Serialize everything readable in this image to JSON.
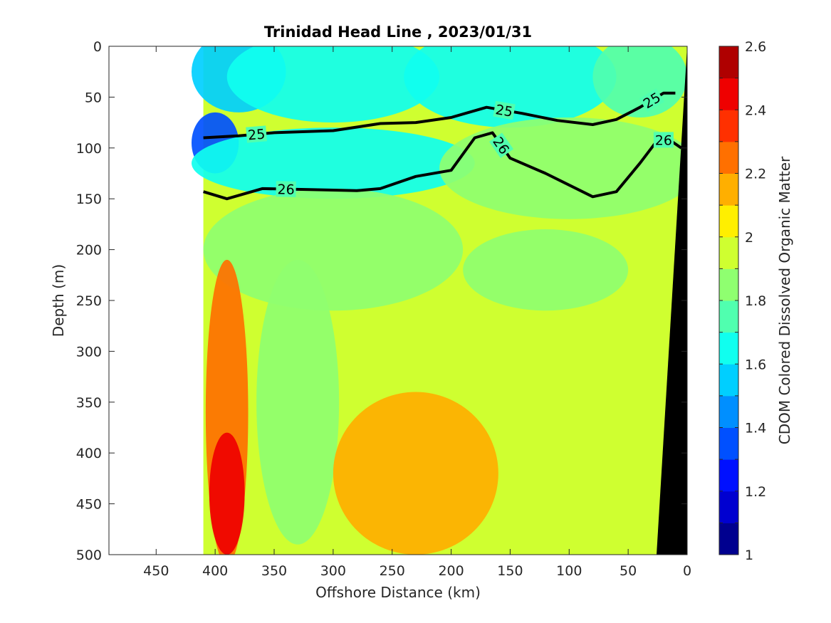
{
  "chart_data": {
    "type": "heatmap",
    "title": "Trinidad Head Line , 2023/01/31",
    "xlabel": "Offshore Distance (km)",
    "ylabel": "Depth (m)",
    "xlim": [
      490,
      0
    ],
    "ylim": [
      0,
      500
    ],
    "x_reversed": true,
    "y_reversed": true,
    "x_ticks": [
      450,
      400,
      350,
      300,
      250,
      200,
      150,
      100,
      50,
      0
    ],
    "y_ticks": [
      0,
      50,
      100,
      150,
      200,
      250,
      300,
      350,
      400,
      450,
      500
    ],
    "data_extent_x": [
      410,
      0
    ],
    "colorbar": {
      "label": "CDOM Colored Dissolved Organic Matter",
      "min": 1,
      "max": 2.6,
      "step": 0.1,
      "ticks": [
        1,
        1.2,
        1.4,
        1.6,
        1.8,
        2,
        2.2,
        2.4,
        2.6
      ],
      "colormap": [
        "#00008f",
        "#0000d0",
        "#0010ff",
        "#0050ff",
        "#008fff",
        "#00cfff",
        "#10ffef",
        "#50ffaf",
        "#8fff70",
        "#cfff30",
        "#ffef00",
        "#ffaf00",
        "#ff7000",
        "#ff3000",
        "#ef0000",
        "#af0000"
      ]
    },
    "density_contours": [
      {
        "label": "25",
        "bold": true,
        "points": [
          [
            410,
            90
          ],
          [
            380,
            88
          ],
          [
            350,
            85
          ],
          [
            300,
            83
          ],
          [
            260,
            76
          ],
          [
            230,
            75
          ],
          [
            200,
            70
          ],
          [
            170,
            60
          ],
          [
            140,
            66
          ],
          [
            110,
            73
          ],
          [
            80,
            77
          ],
          [
            60,
            72
          ],
          [
            40,
            60
          ],
          [
            20,
            46
          ],
          [
            10,
            46
          ]
        ]
      },
      {
        "label": "26",
        "bold": true,
        "points": [
          [
            410,
            143
          ],
          [
            390,
            150
          ],
          [
            360,
            140
          ],
          [
            320,
            141
          ],
          [
            280,
            142
          ],
          [
            260,
            140
          ],
          [
            230,
            128
          ],
          [
            200,
            122
          ],
          [
            180,
            90
          ],
          [
            165,
            85
          ],
          [
            150,
            110
          ],
          [
            120,
            125
          ],
          [
            80,
            148
          ],
          [
            60,
            143
          ],
          [
            40,
            115
          ],
          [
            25,
            92
          ],
          [
            15,
            92
          ],
          [
            5,
            100
          ]
        ]
      }
    ],
    "cdom_field": {
      "background": 1.95,
      "regions": [
        {
          "x": 380,
          "y": 25,
          "rx": 40,
          "ry": 40,
          "value": 1.5
        },
        {
          "x": 300,
          "y": 30,
          "rx": 90,
          "ry": 45,
          "value": 1.65
        },
        {
          "x": 150,
          "y": 30,
          "rx": 90,
          "ry": 50,
          "value": 1.65
        },
        {
          "x": 40,
          "y": 30,
          "rx": 40,
          "ry": 40,
          "value": 1.75
        },
        {
          "x": 400,
          "y": 95,
          "rx": 20,
          "ry": 30,
          "value": 1.35
        },
        {
          "x": 300,
          "y": 115,
          "rx": 120,
          "ry": 35,
          "value": 1.7
        },
        {
          "x": 100,
          "y": 120,
          "rx": 110,
          "ry": 50,
          "value": 1.8
        },
        {
          "x": 300,
          "y": 200,
          "rx": 110,
          "ry": 60,
          "value": 1.8
        },
        {
          "x": 120,
          "y": 220,
          "rx": 70,
          "ry": 40,
          "value": 1.85
        },
        {
          "x": 390,
          "y": 360,
          "rx": 18,
          "ry": 150,
          "value": 2.3
        },
        {
          "x": 390,
          "y": 440,
          "rx": 15,
          "ry": 60,
          "value": 2.45
        },
        {
          "x": 330,
          "y": 350,
          "rx": 35,
          "ry": 140,
          "value": 1.85
        },
        {
          "x": 230,
          "y": 420,
          "rx": 70,
          "ry": 80,
          "value": 2.1
        }
      ]
    }
  }
}
